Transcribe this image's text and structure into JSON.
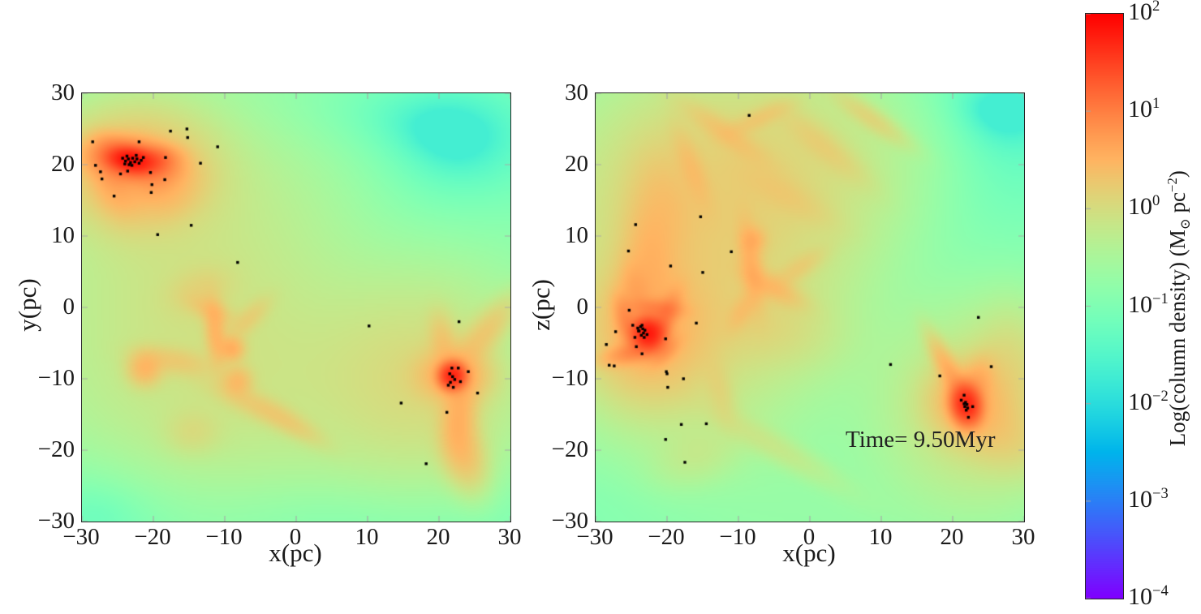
{
  "figure": {
    "background": "#ffffff",
    "border_color": "#262626",
    "particle_color": "#000000"
  },
  "chart_data": {
    "type": "heatmap",
    "colormap": {
      "name": "rainbow",
      "log10_min": -4,
      "log10_max": 2
    },
    "annotation": {
      "text": "Time= 9.50Myr",
      "panel": 1,
      "x": 5.0,
      "y": -18.6
    },
    "panels": [
      {
        "xlabel": "x(pc)",
        "ylabel": "y(pc)",
        "xlim": [
          -30,
          30
        ],
        "ylim": [
          -30,
          30
        ],
        "xticks": [
          -30,
          -20,
          -10,
          0,
          10,
          20,
          30
        ],
        "yticks": [
          -30,
          -20,
          -10,
          0,
          10,
          20,
          30
        ],
        "field": {
          "floor": 0.1,
          "blobs": [
            [
              -5,
              0,
              26,
              26,
              0,
              0.18
            ],
            [
              -16,
              8,
              13,
              15,
              0,
              0.45
            ],
            [
              -8,
              -11,
              16,
              10,
              0,
              0.35
            ],
            [
              18,
              -10,
              9,
              9,
              0,
              0.8
            ],
            [
              22,
              23,
              11,
              8,
              0,
              -0.13
            ],
            [
              0,
              27,
              13,
              5,
              0,
              -0.1
            ],
            [
              -27,
              -27,
              7,
              6,
              0,
              -0.12
            ],
            [
              5,
              -28,
              20,
              5,
              0,
              -0.12
            ],
            [
              14,
              8,
              10,
              10,
              0,
              -0.08
            ],
            [
              -22.5,
              19.5,
              6.5,
              5,
              0,
              2.2
            ],
            [
              -23,
              20.6,
              3.2,
              1.6,
              -8,
              16
            ],
            [
              -23.3,
              20.7,
              1.6,
              0.85,
              -8,
              60
            ],
            [
              -20.8,
              20.3,
              1.9,
              1.0,
              12,
              14
            ],
            [
              -25.5,
              17.5,
              1.8,
              3,
              20,
              2.2
            ],
            [
              -24.8,
              21.8,
              2.2,
              1.1,
              -30,
              2.5
            ],
            [
              -19,
              18.3,
              2.5,
              1.4,
              40,
              2.2
            ],
            [
              -17.5,
              15.8,
              3,
              2,
              30,
              1.0
            ],
            [
              -11.3,
              -3.5,
              0.9,
              2.8,
              5,
              2.2
            ],
            [
              -9.0,
              -5.8,
              1.1,
              1.1,
              0,
              2.6
            ],
            [
              -11.8,
              -0.5,
              2.2,
              1.0,
              -25,
              1.1
            ],
            [
              -8.2,
              -10.3,
              1.3,
              1.3,
              0,
              1.8
            ],
            [
              -21.2,
              -8.6,
              1.5,
              1.5,
              0,
              2.2
            ],
            [
              -17,
              -7.5,
              3.5,
              1.2,
              -10,
              1.0
            ],
            [
              -5.5,
              -13.8,
              4.5,
              1.2,
              -25,
              0.9
            ],
            [
              -0.5,
              -16.5,
              3.5,
              1.0,
              -30,
              0.7
            ],
            [
              -13.5,
              2.5,
              3,
              2,
              20,
              0.6
            ],
            [
              -6.5,
              -1.5,
              2.5,
              1,
              45,
              0.8
            ],
            [
              -14.5,
              -17.5,
              2.5,
              2,
              0,
              0.5
            ],
            [
              21.9,
              -9.6,
              1.0,
              1.0,
              0,
              50
            ],
            [
              22,
              -9.5,
              3,
              2.2,
              0,
              3
            ],
            [
              22.8,
              -15,
              1.5,
              3.5,
              -5,
              2.2
            ],
            [
              23.5,
              -20.5,
              1.8,
              3.2,
              15,
              1.8
            ],
            [
              26.5,
              -3.5,
              4,
              1.4,
              50,
              1.3
            ],
            [
              20.5,
              -4.5,
              1.2,
              2.5,
              10,
              1.1
            ]
          ]
        },
        "particles": [
          [
            -24.3,
            20.9
          ],
          [
            -23.9,
            20.5
          ],
          [
            -23.5,
            20.8
          ],
          [
            -23.2,
            20.3
          ],
          [
            -22.9,
            20.9
          ],
          [
            -22.6,
            20.4
          ],
          [
            -22.3,
            20.8
          ],
          [
            -23.7,
            21.2
          ],
          [
            -22.0,
            20.2
          ],
          [
            -23.0,
            19.9
          ],
          [
            -24.0,
            20.1
          ],
          [
            -21.7,
            20.6
          ],
          [
            -22.4,
            21.3
          ],
          [
            -21.4,
            21.0
          ],
          [
            -23.4,
            20.0
          ],
          [
            -28.5,
            23.2
          ],
          [
            -28.1,
            19.9
          ],
          [
            -27.4,
            19.0
          ],
          [
            -27.2,
            18.0
          ],
          [
            -25.5,
            15.6
          ],
          [
            -24.6,
            18.7
          ],
          [
            -23.6,
            19.1
          ],
          [
            -22.0,
            23.2
          ],
          [
            -20.4,
            18.9
          ],
          [
            -20.2,
            17.2
          ],
          [
            -20.3,
            16.1
          ],
          [
            -19.4,
            10.2
          ],
          [
            -18.4,
            17.9
          ],
          [
            -18.3,
            21.0
          ],
          [
            -17.6,
            24.7
          ],
          [
            -15.3,
            25.0
          ],
          [
            -15.2,
            23.8
          ],
          [
            -14.7,
            11.5
          ],
          [
            -13.4,
            20.2
          ],
          [
            -11.0,
            22.5
          ],
          [
            -8.2,
            6.3
          ],
          [
            10.2,
            -2.6
          ],
          [
            14.7,
            -13.4
          ],
          [
            22.8,
            -2.0
          ],
          [
            21.8,
            -8.5
          ],
          [
            22.7,
            -8.5
          ],
          [
            24.1,
            -9.0
          ],
          [
            21.5,
            -9.3
          ],
          [
            21.9,
            -9.7
          ],
          [
            22.2,
            -10.1
          ],
          [
            21.6,
            -10.5
          ],
          [
            21.3,
            -10.9
          ],
          [
            22.0,
            -11.2
          ],
          [
            23.0,
            -10.4
          ],
          [
            25.4,
            -12.0
          ],
          [
            21.1,
            -14.7
          ],
          [
            18.2,
            -21.9
          ]
        ]
      },
      {
        "xlabel": "x(pc)",
        "ylabel": "z(pc)",
        "xlim": [
          -30,
          30
        ],
        "ylim": [
          -30,
          30
        ],
        "xticks": [
          -30,
          -20,
          -10,
          0,
          10,
          20,
          30
        ],
        "yticks": [
          -30,
          -20,
          -10,
          0,
          10,
          20,
          30
        ],
        "field": {
          "floor": 0.1,
          "blobs": [
            [
              -5,
              -6,
              26,
              26,
              0,
              0.16
            ],
            [
              -14,
              13,
              13,
              12,
              0,
              1.0
            ],
            [
              -4,
              21,
              13,
              8,
              0,
              0.5
            ],
            [
              -18,
              -2,
              10,
              12,
              0,
              0.55
            ],
            [
              20,
              21,
              13,
              10,
              0,
              -0.13
            ],
            [
              -22,
              -25,
              12,
              7,
              0,
              -0.1
            ],
            [
              2,
              -15,
              10,
              8,
              0,
              -0.07
            ],
            [
              13,
              3,
              9,
              9,
              0,
              -0.07
            ],
            [
              24,
              -14,
              8,
              8,
              0,
              0.8
            ],
            [
              25,
              28,
              8,
              4,
              0,
              -0.06
            ],
            [
              -22.7,
              -3.6,
              1.2,
              1.2,
              0,
              60
            ],
            [
              -22.5,
              -3.5,
              5,
              5.5,
              0,
              2.6
            ],
            [
              -20.6,
              -2.2,
              0.9,
              2.6,
              -25,
              7
            ],
            [
              -24.3,
              -6.1,
              2.6,
              0.9,
              15,
              6
            ],
            [
              -25.7,
              -2.0,
              0.9,
              2.2,
              15,
              5
            ],
            [
              -21.5,
              -0.1,
              2.2,
              0.8,
              -5,
              5
            ],
            [
              -20.3,
              -6.3,
              1.5,
              0.8,
              45,
              3
            ],
            [
              -24.5,
              2.5,
              1.2,
              2.5,
              10,
              1.8
            ],
            [
              -22.5,
              7,
              2.2,
              4.5,
              5,
              1.5
            ],
            [
              -20.5,
              14.5,
              2.8,
              5,
              10,
              1.0
            ],
            [
              -12,
              24.5,
              4.5,
              1.1,
              -35,
              1.0
            ],
            [
              -7,
              26.5,
              3.2,
              0.9,
              25,
              0.9
            ],
            [
              -16.5,
              19.5,
              1.1,
              3.8,
              20,
              1.0
            ],
            [
              2,
              22.5,
              5,
              1.3,
              -40,
              0.7
            ],
            [
              8.5,
              26.5,
              4,
              1.0,
              -35,
              0.85
            ],
            [
              -3,
              15.5,
              5,
              1.5,
              -30,
              0.55
            ],
            [
              -8.2,
              6,
              1.0,
              3.8,
              8,
              2.0
            ],
            [
              -7.8,
              9.5,
              1.1,
              1.1,
              0,
              1.5
            ],
            [
              -5.2,
              2.8,
              3,
              1.1,
              -28,
              1.5
            ],
            [
              -1.5,
              5.5,
              2.8,
              1.0,
              35,
              0.8
            ],
            [
              -9.5,
              -0.5,
              2,
              1,
              60,
              1.0
            ],
            [
              -5,
              -3,
              6,
              3.5,
              -10,
              0.45
            ],
            [
              21.9,
              -13.6,
              1.1,
              1.5,
              10,
              48
            ],
            [
              22,
              -13,
              3.2,
              3.2,
              0,
              2.4
            ],
            [
              19.8,
              -9.5,
              0.9,
              3.6,
              28,
              2.6
            ],
            [
              23.3,
              -10.8,
              1.3,
              2.4,
              -20,
              2.0
            ],
            [
              26.5,
              -17.5,
              4.5,
              3,
              -30,
              0.9
            ],
            [
              28,
              -8,
              3,
              5,
              0,
              0.6
            ],
            [
              -5,
              -19.5,
              7,
              1.3,
              -30,
              0.4
            ],
            [
              -12.5,
              -12,
              1.2,
              3,
              15,
              0.55
            ],
            [
              -16,
              -21,
              4,
              2.5,
              20,
              0.3
            ]
          ]
        },
        "particles": [
          [
            -23.7,
            -2.7
          ],
          [
            -23.4,
            -3.0
          ],
          [
            -23.9,
            -3.3
          ],
          [
            -23.3,
            -3.6
          ],
          [
            -23.6,
            -3.9
          ],
          [
            -23.1,
            -3.2
          ],
          [
            -24.1,
            -2.9
          ],
          [
            -23.5,
            -2.5
          ],
          [
            -23.2,
            -4.2
          ],
          [
            -22.8,
            -3.8
          ],
          [
            -25.3,
            -0.4
          ],
          [
            -24.8,
            -2.5
          ],
          [
            -24.0,
            -3.3
          ],
          [
            -27.2,
            -3.4
          ],
          [
            -28.5,
            -5.2
          ],
          [
            -24.5,
            -4.2
          ],
          [
            -24.3,
            -5.5
          ],
          [
            -23.5,
            -6.5
          ],
          [
            -28.1,
            -8.1
          ],
          [
            -27.4,
            -8.2
          ],
          [
            -20.2,
            -4.4
          ],
          [
            -20.1,
            -9.0
          ],
          [
            -20.0,
            -9.3
          ],
          [
            -17.7,
            -10.0
          ],
          [
            -15.9,
            -2.2
          ],
          [
            -19.9,
            -11.2
          ],
          [
            -18.0,
            -16.4
          ],
          [
            -14.5,
            -16.3
          ],
          [
            -20.2,
            -18.5
          ],
          [
            -17.5,
            -21.7
          ],
          [
            -8.5,
            26.9
          ],
          [
            -15.3,
            12.7
          ],
          [
            -24.4,
            11.6
          ],
          [
            -25.4,
            7.9
          ],
          [
            -11.0,
            7.8
          ],
          [
            -19.5,
            5.8
          ],
          [
            -15.0,
            4.9
          ],
          [
            23.6,
            -1.4
          ],
          [
            11.3,
            -8.0
          ],
          [
            25.4,
            -8.3
          ],
          [
            18.2,
            -9.6
          ],
          [
            21.6,
            -12.3
          ],
          [
            21.2,
            -13.0
          ],
          [
            21.8,
            -13.3
          ],
          [
            22.0,
            -13.6
          ],
          [
            21.7,
            -13.9
          ],
          [
            22.1,
            -14.1
          ],
          [
            21.9,
            -14.4
          ],
          [
            21.6,
            -13.5
          ],
          [
            22.8,
            -13.9
          ],
          [
            22.2,
            -15.4
          ]
        ]
      }
    ],
    "colorbar": {
      "scale": "log",
      "tick_exponents": [
        2,
        1,
        0,
        -1,
        -2,
        -3,
        -4
      ],
      "label_parts": [
        "Log(column density) (M",
        "⊙",
        " pc",
        "−2",
        ")"
      ]
    }
  }
}
